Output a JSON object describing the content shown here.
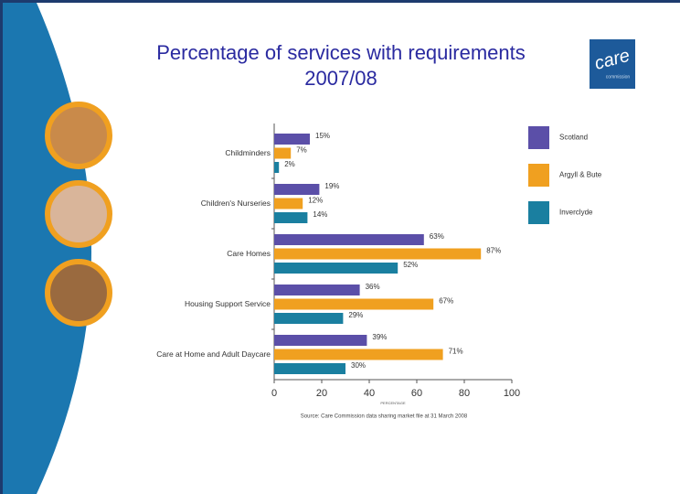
{
  "chart_data": {
    "type": "bar",
    "orientation": "horizontal",
    "title": "Percentage of services with requirements 2007/08",
    "logo": "care",
    "logo_sub": "commission",
    "categories": [
      "Childminders",
      "Children's Nurseries",
      "Care Homes",
      "Housing Support Service",
      "Care at Home and Adult Daycare"
    ],
    "series": [
      {
        "name": "Scotland",
        "color": "#5b4fa8",
        "values": [
          15,
          19,
          63,
          36,
          39
        ],
        "value_labels": [
          "15%",
          "19%",
          "63%",
          "36%",
          "39%"
        ]
      },
      {
        "name": "Argyll & Bute",
        "color": "#f0a020",
        "values": [
          7,
          12,
          87,
          67,
          71
        ],
        "value_labels": [
          "7%",
          "12%",
          "87%",
          "67%",
          "71%"
        ]
      },
      {
        "name": "Inverclyde",
        "color": "#1a7fa0",
        "values": [
          2,
          14,
          52,
          29,
          30
        ],
        "value_labels": [
          "2%",
          "14%",
          "52%",
          "29%",
          "30%"
        ]
      }
    ],
    "xlim": [
      0,
      100
    ],
    "xticks": [
      0,
      20,
      40,
      60,
      80,
      100
    ],
    "xlabel": "PERCENTAGE",
    "source": "Source: Care Commission data sharing market file at 31 March 2008",
    "legend": "right"
  }
}
